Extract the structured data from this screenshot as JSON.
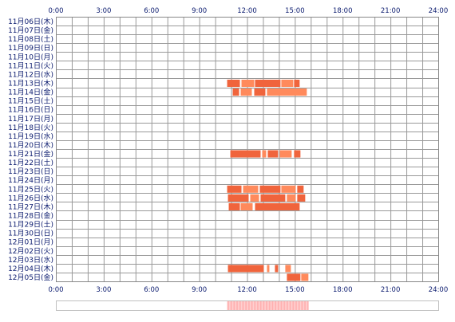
{
  "chart_data": {
    "type": "bar",
    "title": "",
    "xlabel": "",
    "ylabel": "",
    "x_range_hours": [
      0,
      24
    ],
    "x_tick_labels": [
      "0:00",
      "3:00",
      "6:00",
      "9:00",
      "12:00",
      "15:00",
      "18:00",
      "21:00",
      "24:00"
    ],
    "x_tick_values": [
      0,
      3,
      6,
      9,
      12,
      15,
      18,
      21,
      24
    ],
    "x_minor_step_hours": 1,
    "x_ticks_top_and_bottom": true,
    "grid": true,
    "categories": [
      "11月06日(木)",
      "11月07日(金)",
      "11月08日(土)",
      "11月09日(日)",
      "11月10日(月)",
      "11月11日(火)",
      "11月12日(水)",
      "11月13日(木)",
      "11月14日(金)",
      "11月15日(土)",
      "11月16日(日)",
      "11月17日(月)",
      "11月18日(火)",
      "11月19日(水)",
      "11月20日(木)",
      "11月21日(金)",
      "11月22日(土)",
      "11月23日(日)",
      "11月24日(月)",
      "11月25日(火)",
      "11月26日(水)",
      "11月27日(木)",
      "11月28日(金)",
      "11月29日(土)",
      "11月30日(日)",
      "12月01日(月)",
      "12月02日(火)",
      "12月03日(水)",
      "12月04日(木)",
      "12月05日(金)"
    ],
    "intervals": [
      {
        "day": "11月13日(木)",
        "segments": [
          [
            10.75,
            11.55
          ],
          [
            11.65,
            12.45
          ],
          [
            12.5,
            14.1
          ],
          [
            14.15,
            14.9
          ],
          [
            14.95,
            15.3
          ]
        ]
      },
      {
        "day": "11月14日(金)",
        "segments": [
          [
            11.1,
            11.5
          ],
          [
            11.6,
            12.3
          ],
          [
            12.45,
            13.15
          ],
          [
            13.25,
            15.75
          ]
        ]
      },
      {
        "day": "11月21日(金)",
        "segments": [
          [
            10.95,
            12.85
          ],
          [
            12.95,
            13.2
          ],
          [
            13.3,
            13.95
          ],
          [
            14.05,
            14.8
          ],
          [
            14.95,
            15.35
          ]
        ]
      },
      {
        "day": "11月25日(火)",
        "segments": [
          [
            10.75,
            11.65
          ],
          [
            11.75,
            12.7
          ],
          [
            12.8,
            14.1
          ],
          [
            14.15,
            15.05
          ],
          [
            15.15,
            15.55
          ]
        ]
      },
      {
        "day": "11月26日(水)",
        "segments": [
          [
            10.8,
            12.1
          ],
          [
            12.2,
            12.75
          ],
          [
            12.85,
            14.4
          ],
          [
            14.5,
            15.05
          ],
          [
            15.15,
            15.65
          ]
        ]
      },
      {
        "day": "11月27日(木)",
        "segments": [
          [
            10.85,
            11.55
          ],
          [
            11.6,
            12.35
          ],
          [
            12.5,
            15.3
          ]
        ]
      },
      {
        "day": "12月04日(木)",
        "segments": [
          [
            10.8,
            13.05
          ],
          [
            13.25,
            13.4
          ],
          [
            13.75,
            13.95
          ],
          [
            14.4,
            14.75
          ]
        ]
      },
      {
        "day": "12月05日(金)",
        "segments": [
          [
            14.5,
            15.35
          ],
          [
            15.4,
            15.85
          ]
        ]
      }
    ],
    "colors": {
      "bar_light": "#ff8a5c",
      "bar_dark": "#f0643c",
      "grid": "#999999",
      "grid_border": "#888888",
      "tick_label": "#0a1a6e",
      "row_label": "#0a1a6e",
      "density_fill": "#ff8f8f",
      "density_border": "#c0c0c0"
    },
    "summary_strip": {
      "description_segments_hours": [
        [
          10.75,
          15.85
        ]
      ]
    }
  }
}
